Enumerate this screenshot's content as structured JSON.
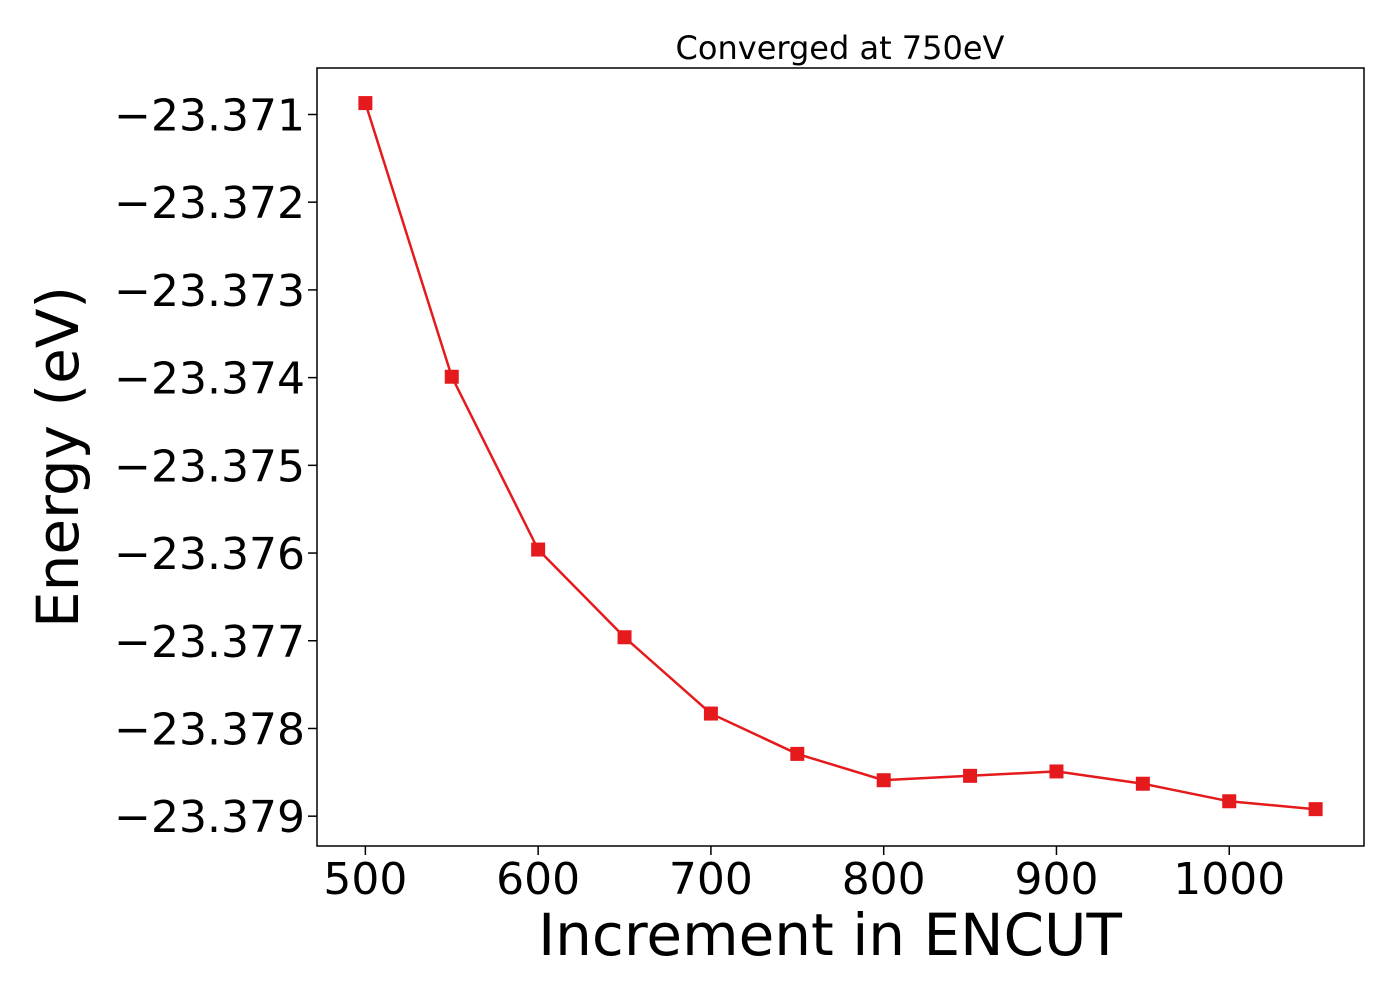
{
  "chart_data": {
    "type": "line",
    "title": "Converged at 750eV",
    "xlabel": "Increment in ENCUT",
    "ylabel": "Energy (eV)",
    "x": [
      500,
      550,
      600,
      650,
      700,
      750,
      800,
      850,
      900,
      950,
      1000,
      1050
    ],
    "series": [
      {
        "values": [
          -23.37087,
          -23.37399,
          -23.37596,
          -23.37696,
          -23.37783,
          -23.37829,
          -23.37859,
          -23.37854,
          -23.37849,
          -23.37863,
          -23.37883,
          -23.37892
        ],
        "color": "#e41a1c",
        "marker": "square"
      }
    ],
    "xlim": [
      472,
      1078
    ],
    "ylim": [
      -23.37934,
      -23.37047
    ],
    "xticks": [
      500,
      600,
      700,
      800,
      900,
      1000
    ],
    "xtick_labels": [
      "500",
      "600",
      "700",
      "800",
      "900",
      "1000"
    ],
    "yticks": [
      -23.371,
      -23.372,
      -23.373,
      -23.374,
      -23.375,
      -23.376,
      -23.377,
      -23.378,
      -23.379
    ],
    "ytick_labels": [
      "−23.371",
      "−23.372",
      "−23.373",
      "−23.374",
      "−23.375",
      "−23.376",
      "−23.377",
      "−23.378",
      "−23.379"
    ],
    "grid": false,
    "legend": false
  }
}
